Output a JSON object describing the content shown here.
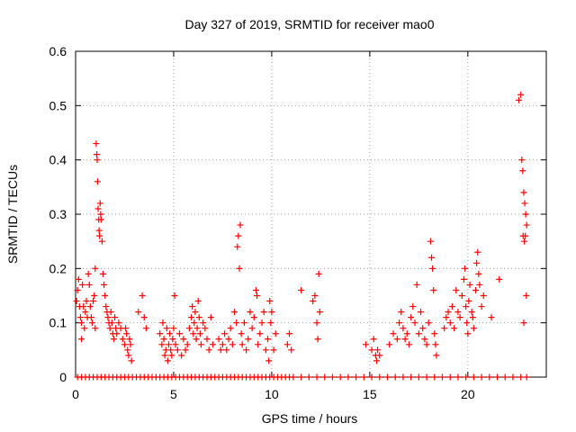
{
  "chart_data": {
    "type": "scatter",
    "title": "Day 327 of 2019, SRMTID for receiver mao0",
    "xlabel": "GPS time / hours",
    "ylabel": "SRMTID / TECUs",
    "xlim": [
      0,
      24
    ],
    "ylim": [
      0,
      0.6
    ],
    "x_ticks": [
      0,
      5,
      10,
      15,
      20
    ],
    "x_tick_labels": [
      "0",
      "5",
      "10",
      "15",
      "20"
    ],
    "y_ticks": [
      0,
      0.1,
      0.2,
      0.3,
      0.4,
      0.5,
      0.6
    ],
    "y_tick_labels": [
      "0",
      "0.1",
      "0.2",
      "0.3",
      "0.4",
      "0.5",
      "0.6"
    ],
    "grid": true,
    "marker": "plus",
    "colors": {
      "points": "#ff0000",
      "grid": "#a0a0a0",
      "axes": "#000000"
    },
    "series": [
      {
        "name": "SRMTID",
        "points": [
          [
            0.05,
            0.14
          ],
          [
            0.1,
            0.16
          ],
          [
            0.15,
            0.18
          ],
          [
            0.2,
            0.13
          ],
          [
            0.25,
            0.11
          ],
          [
            0.3,
            0.1
          ],
          [
            0.3,
            0.07
          ],
          [
            0.35,
            0.17
          ],
          [
            0.4,
            0.13
          ],
          [
            0.45,
            0.09
          ],
          [
            0.5,
            0.12
          ],
          [
            0.55,
            0.14
          ],
          [
            0.6,
            0.11
          ],
          [
            0.65,
            0.19
          ],
          [
            0.7,
            0.17
          ],
          [
            0.75,
            0.13
          ],
          [
            0.8,
            0.11
          ],
          [
            0.85,
            0.1
          ],
          [
            0.9,
            0.14
          ],
          [
            0.95,
            0.15
          ],
          [
            1.0,
            0.09
          ],
          [
            1.0,
            0.2
          ],
          [
            1.05,
            0.43
          ],
          [
            1.08,
            0.41
          ],
          [
            1.1,
            0.4
          ],
          [
            1.12,
            0.36
          ],
          [
            1.15,
            0.31
          ],
          [
            1.18,
            0.29
          ],
          [
            1.2,
            0.27
          ],
          [
            1.22,
            0.26
          ],
          [
            1.25,
            0.32
          ],
          [
            1.28,
            0.3
          ],
          [
            1.3,
            0.29
          ],
          [
            1.35,
            0.25
          ],
          [
            1.4,
            0.19
          ],
          [
            1.45,
            0.17
          ],
          [
            1.5,
            0.15
          ],
          [
            1.55,
            0.13
          ],
          [
            1.6,
            0.12
          ],
          [
            1.65,
            0.11
          ],
          [
            1.7,
            0.1
          ],
          [
            1.75,
            0.09
          ],
          [
            1.8,
            0.12
          ],
          [
            1.85,
            0.1
          ],
          [
            1.9,
            0.08
          ],
          [
            1.95,
            0.07
          ],
          [
            2.0,
            0.11
          ],
          [
            2.05,
            0.09
          ],
          [
            2.1,
            0.08
          ],
          [
            2.2,
            0.1
          ],
          [
            2.3,
            0.09
          ],
          [
            2.4,
            0.07
          ],
          [
            2.5,
            0.06
          ],
          [
            2.55,
            0.09
          ],
          [
            2.6,
            0.08
          ],
          [
            2.65,
            0.05
          ],
          [
            2.7,
            0.04
          ],
          [
            2.75,
            0.07
          ],
          [
            2.8,
            0.06
          ],
          [
            2.85,
            0.03
          ],
          [
            3.2,
            0.12
          ],
          [
            3.4,
            0.15
          ],
          [
            3.5,
            0.11
          ],
          [
            3.6,
            0.09
          ],
          [
            4.3,
            0.08
          ],
          [
            4.4,
            0.06
          ],
          [
            4.45,
            0.1
          ],
          [
            4.5,
            0.07
          ],
          [
            4.55,
            0.04
          ],
          [
            4.6,
            0.05
          ],
          [
            4.65,
            0.09
          ],
          [
            4.7,
            0.03
          ],
          [
            4.75,
            0.06
          ],
          [
            4.8,
            0.08
          ],
          [
            4.85,
            0.05
          ],
          [
            4.9,
            0.04
          ],
          [
            4.95,
            0.07
          ],
          [
            5.0,
            0.09
          ],
          [
            5.05,
            0.15
          ],
          [
            5.1,
            0.06
          ],
          [
            5.2,
            0.05
          ],
          [
            5.3,
            0.08
          ],
          [
            5.4,
            0.04
          ],
          [
            5.5,
            0.07
          ],
          [
            5.6,
            0.05
          ],
          [
            5.7,
            0.06
          ],
          [
            5.8,
            0.09
          ],
          [
            5.9,
            0.11
          ],
          [
            5.95,
            0.13
          ],
          [
            6.0,
            0.08
          ],
          [
            6.05,
            0.1
          ],
          [
            6.1,
            0.12
          ],
          [
            6.15,
            0.07
          ],
          [
            6.2,
            0.09
          ],
          [
            6.25,
            0.14
          ],
          [
            6.3,
            0.11
          ],
          [
            6.35,
            0.08
          ],
          [
            6.4,
            0.06
          ],
          [
            6.5,
            0.1
          ],
          [
            6.6,
            0.09
          ],
          [
            6.7,
            0.07
          ],
          [
            6.8,
            0.05
          ],
          [
            6.9,
            0.11
          ],
          [
            7.0,
            0.06
          ],
          [
            7.3,
            0.07
          ],
          [
            7.4,
            0.05
          ],
          [
            7.5,
            0.06
          ],
          [
            7.6,
            0.08
          ],
          [
            7.7,
            0.05
          ],
          [
            7.8,
            0.07
          ],
          [
            7.9,
            0.09
          ],
          [
            8.0,
            0.06
          ],
          [
            8.1,
            0.12
          ],
          [
            8.2,
            0.1
          ],
          [
            8.25,
            0.24
          ],
          [
            8.3,
            0.26
          ],
          [
            8.35,
            0.2
          ],
          [
            8.4,
            0.28
          ],
          [
            8.45,
            0.08
          ],
          [
            8.5,
            0.06
          ],
          [
            8.6,
            0.1
          ],
          [
            8.7,
            0.05
          ],
          [
            8.8,
            0.07
          ],
          [
            8.9,
            0.12
          ],
          [
            9.0,
            0.09
          ],
          [
            9.1,
            0.11
          ],
          [
            9.2,
            0.16
          ],
          [
            9.25,
            0.15
          ],
          [
            9.3,
            0.06
          ],
          [
            9.4,
            0.08
          ],
          [
            9.5,
            0.1
          ],
          [
            9.6,
            0.12
          ],
          [
            9.7,
            0.05
          ],
          [
            9.8,
            0.07
          ],
          [
            9.85,
            0.03
          ],
          [
            9.9,
            0.14
          ],
          [
            9.95,
            0.1
          ],
          [
            10.0,
            0.12
          ],
          [
            10.1,
            0.05
          ],
          [
            10.2,
            0.08
          ],
          [
            10.8,
            0.06
          ],
          [
            10.9,
            0.08
          ],
          [
            11.0,
            0.05
          ],
          [
            11.5,
            0.16
          ],
          [
            12.1,
            0.14
          ],
          [
            12.2,
            0.15
          ],
          [
            12.3,
            0.1
          ],
          [
            12.35,
            0.07
          ],
          [
            12.4,
            0.19
          ],
          [
            12.45,
            0.12
          ],
          [
            14.8,
            0.06
          ],
          [
            15.1,
            0.05
          ],
          [
            15.2,
            0.07
          ],
          [
            15.3,
            0.04
          ],
          [
            15.35,
            0.03
          ],
          [
            15.4,
            0.05
          ],
          [
            15.5,
            0.04
          ],
          [
            16.0,
            0.06
          ],
          [
            16.2,
            0.08
          ],
          [
            16.4,
            0.07
          ],
          [
            16.5,
            0.1
          ],
          [
            16.6,
            0.12
          ],
          [
            16.7,
            0.09
          ],
          [
            16.8,
            0.07
          ],
          [
            16.9,
            0.08
          ],
          [
            17.0,
            0.06
          ],
          [
            17.1,
            0.11
          ],
          [
            17.2,
            0.13
          ],
          [
            17.3,
            0.1
          ],
          [
            17.4,
            0.17
          ],
          [
            17.5,
            0.08
          ],
          [
            17.6,
            0.12
          ],
          [
            17.7,
            0.09
          ],
          [
            17.8,
            0.07
          ],
          [
            17.9,
            0.06
          ],
          [
            18.0,
            0.1
          ],
          [
            18.1,
            0.25
          ],
          [
            18.15,
            0.22
          ],
          [
            18.2,
            0.2
          ],
          [
            18.25,
            0.16
          ],
          [
            18.3,
            0.08
          ],
          [
            18.35,
            0.06
          ],
          [
            18.4,
            0.04
          ],
          [
            18.8,
            0.09
          ],
          [
            18.9,
            0.11
          ],
          [
            19.0,
            0.12
          ],
          [
            19.1,
            0.1
          ],
          [
            19.2,
            0.13
          ],
          [
            19.3,
            0.09
          ],
          [
            19.4,
            0.16
          ],
          [
            19.5,
            0.12
          ],
          [
            19.6,
            0.11
          ],
          [
            19.7,
            0.15
          ],
          [
            19.8,
            0.18
          ],
          [
            19.85,
            0.2
          ],
          [
            19.9,
            0.13
          ],
          [
            19.95,
            0.1
          ],
          [
            20.0,
            0.08
          ],
          [
            20.05,
            0.14
          ],
          [
            20.1,
            0.17
          ],
          [
            20.2,
            0.12
          ],
          [
            20.25,
            0.11
          ],
          [
            20.3,
            0.09
          ],
          [
            20.4,
            0.16
          ],
          [
            20.45,
            0.21
          ],
          [
            20.5,
            0.23
          ],
          [
            20.55,
            0.19
          ],
          [
            20.6,
            0.17
          ],
          [
            20.7,
            0.13
          ],
          [
            20.8,
            0.15
          ],
          [
            21.2,
            0.11
          ],
          [
            21.6,
            0.18
          ],
          [
            22.6,
            0.51
          ],
          [
            22.7,
            0.52
          ],
          [
            22.75,
            0.4
          ],
          [
            22.8,
            0.38
          ],
          [
            22.85,
            0.34
          ],
          [
            22.9,
            0.32
          ],
          [
            22.95,
            0.3
          ],
          [
            23.0,
            0.28
          ],
          [
            22.82,
            0.26
          ],
          [
            22.88,
            0.25
          ],
          [
            22.93,
            0.26
          ],
          [
            22.98,
            0.15
          ],
          [
            22.85,
            0.1
          ]
        ],
        "zero_points_x": [
          0.1,
          0.3,
          0.5,
          0.7,
          0.9,
          1.1,
          1.3,
          1.5,
          1.7,
          1.9,
          2.1,
          2.3,
          2.5,
          2.7,
          2.9,
          3.1,
          3.3,
          3.5,
          3.7,
          3.9,
          4.1,
          4.3,
          4.5,
          4.7,
          4.9,
          5.1,
          5.3,
          5.5,
          5.7,
          5.9,
          6.1,
          6.3,
          6.5,
          6.7,
          6.9,
          7.1,
          7.3,
          7.5,
          7.7,
          7.9,
          8.1,
          8.3,
          8.5,
          8.7,
          8.9,
          9.1,
          9.3,
          9.5,
          9.7,
          9.9,
          10.1,
          10.3,
          10.5,
          10.7,
          10.9,
          11.1,
          11.5,
          11.9,
          12.3,
          12.7,
          13.1,
          13.5,
          13.9,
          14.3,
          14.7,
          15.1,
          15.5,
          15.9,
          16.3,
          16.7,
          17.1,
          17.5,
          17.9,
          18.3,
          18.7,
          19.1,
          19.5,
          19.9,
          20.3,
          20.7,
          21.1,
          21.5,
          21.9,
          22.3,
          22.7,
          23.0
        ]
      }
    ]
  }
}
